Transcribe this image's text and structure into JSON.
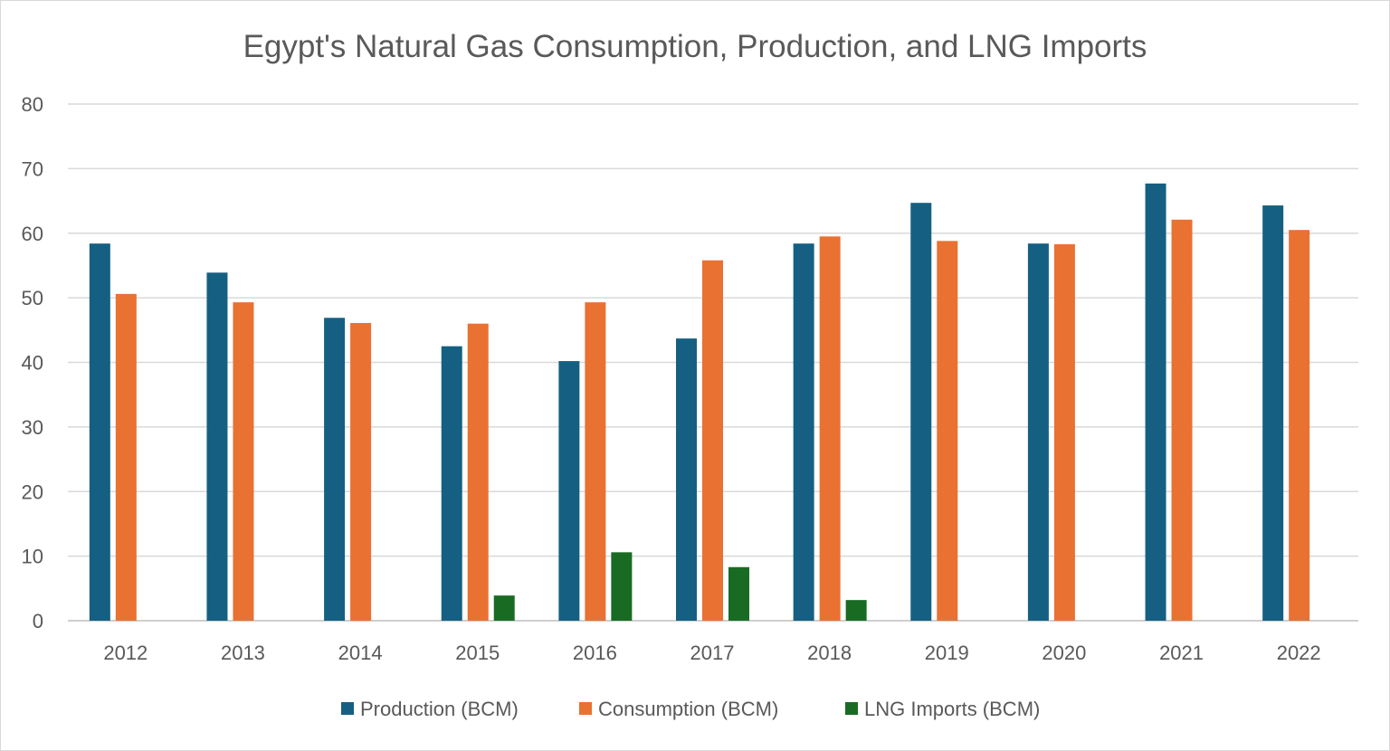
{
  "chart_data": {
    "type": "bar",
    "title": "Egypt's Natural Gas Consumption, Production, and LNG Imports",
    "xlabel": "",
    "ylabel": "",
    "ylim": [
      0,
      80
    ],
    "yticks": [
      0,
      10,
      20,
      30,
      40,
      50,
      60,
      70,
      80
    ],
    "grid": true,
    "legend": "bottom",
    "categories": [
      "2012",
      "2013",
      "2014",
      "2015",
      "2016",
      "2017",
      "2018",
      "2019",
      "2020",
      "2021",
      "2022"
    ],
    "series": [
      {
        "name": "Production (BCM)",
        "color": "#156082",
        "values": [
          58.4,
          53.9,
          46.9,
          42.5,
          40.2,
          43.7,
          58.4,
          64.7,
          58.4,
          67.7,
          64.3
        ]
      },
      {
        "name": "Consumption (BCM)",
        "color": "#E97132",
        "values": [
          50.6,
          49.3,
          46.1,
          46.0,
          49.3,
          55.8,
          59.5,
          58.8,
          58.3,
          62.1,
          60.5
        ]
      },
      {
        "name": "LNG Imports (BCM)",
        "color": "#196B24",
        "values": [
          0,
          0,
          0,
          3.9,
          10.6,
          8.3,
          3.2,
          0,
          0,
          0,
          0
        ]
      }
    ]
  }
}
